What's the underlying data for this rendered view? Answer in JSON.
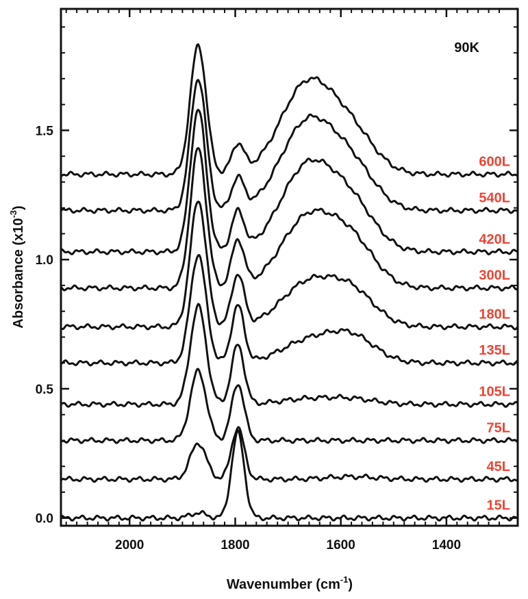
{
  "chart_data": {
    "type": "line",
    "title": "",
    "annotation": "90K",
    "xlabel": {
      "base": "Wavenumber (cm",
      "sup": "-1",
      "end": ")"
    },
    "ylabel": {
      "base": "Absorbance (x10",
      "sup": "-3",
      "end": ")"
    },
    "xlim": [
      2130,
      1265
    ],
    "ylim": [
      -0.03,
      1.97
    ],
    "x_reversed": true,
    "x_ticks": [
      2000,
      1800,
      1600,
      1400
    ],
    "x_tick_labels": [
      "2000",
      "1800",
      "1600",
      "1400"
    ],
    "y_ticks": [
      0.0,
      0.5,
      1.0,
      1.5
    ],
    "y_tick_labels": [
      "0.0",
      "0.5",
      "1.0",
      "1.5"
    ],
    "grid": false,
    "line_color": "#111111",
    "label_color": "#ee4433",
    "peaks": {
      "p1870": {
        "center": 1870,
        "width": 15
      },
      "p1795": {
        "center": 1795,
        "width": 12
      },
      "b1660": {
        "center": 1665,
        "width": 50
      },
      "b1580": {
        "center": 1580,
        "width": 45
      }
    },
    "series": [
      {
        "name": "15L",
        "offset": 0.0,
        "p1870": 0.02,
        "p1795": 0.33,
        "b1660": 0.0,
        "b1580": 0.0
      },
      {
        "name": "45L",
        "offset": 0.15,
        "p1870": 0.14,
        "p1795": 0.2,
        "b1660": 0.0,
        "b1580": 0.01
      },
      {
        "name": "75L",
        "offset": 0.3,
        "p1870": 0.27,
        "p1795": 0.22,
        "b1660": 0.0,
        "b1580": 0.0
      },
      {
        "name": "105L",
        "offset": 0.44,
        "p1870": 0.38,
        "p1795": 0.23,
        "b1660": 0.02,
        "b1580": 0.02
      },
      {
        "name": "135L",
        "offset": 0.6,
        "p1870": 0.42,
        "p1795": 0.22,
        "b1660": 0.08,
        "b1580": 0.1
      },
      {
        "name": "180L",
        "offset": 0.74,
        "p1870": 0.49,
        "p1795": 0.2,
        "b1660": 0.16,
        "b1580": 0.13
      },
      {
        "name": "300L",
        "offset": 0.89,
        "p1870": 0.54,
        "p1795": 0.18,
        "b1660": 0.26,
        "b1580": 0.17
      },
      {
        "name": "420L",
        "offset": 1.03,
        "p1870": 0.55,
        "p1795": 0.15,
        "b1660": 0.32,
        "b1580": 0.17
      },
      {
        "name": "540L",
        "offset": 1.19,
        "p1870": 0.51,
        "p1795": 0.12,
        "b1660": 0.33,
        "b1580": 0.16
      },
      {
        "name": "600L",
        "offset": 1.33,
        "p1870": 0.5,
        "p1795": 0.11,
        "b1660": 0.34,
        "b1580": 0.15
      }
    ]
  }
}
